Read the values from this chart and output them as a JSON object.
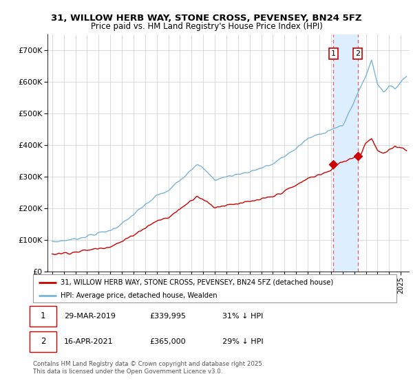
{
  "title_line1": "31, WILLOW HERB WAY, STONE CROSS, PEVENSEY, BN24 5FZ",
  "title_line2": "Price paid vs. HM Land Registry's House Price Index (HPI)",
  "ylim": [
    0,
    750000
  ],
  "yticks": [
    0,
    100000,
    200000,
    300000,
    400000,
    500000,
    600000,
    700000
  ],
  "ytick_labels": [
    "£0",
    "£100K",
    "£200K",
    "£300K",
    "£400K",
    "£500K",
    "£600K",
    "£700K"
  ],
  "hpi_color": "#7ab4d8",
  "price_color": "#cc0000",
  "sale1_date": "29-MAR-2019",
  "sale1_price": 339995,
  "sale1_hpi_pct": "31% ↓ HPI",
  "sale2_date": "16-APR-2021",
  "sale2_price": 365000,
  "sale2_hpi_pct": "29% ↓ HPI",
  "legend_label_price": "31, WILLOW HERB WAY, STONE CROSS, PEVENSEY, BN24 5FZ (detached house)",
  "legend_label_hpi": "HPI: Average price, detached house, Wealden",
  "footer": "Contains HM Land Registry data © Crown copyright and database right 2025.\nThis data is licensed under the Open Government Licence v3.0.",
  "grid_color": "#cccccc",
  "vline_color": "#e06060",
  "shade_color": "#ddeeff",
  "sale1_year": 2019.21,
  "sale2_year": 2021.29
}
